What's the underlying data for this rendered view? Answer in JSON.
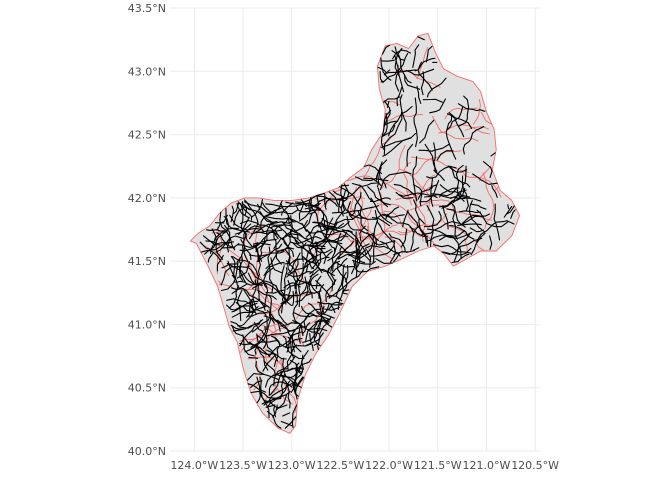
{
  "chart_data": {
    "type": "map",
    "title": "",
    "xlabel": "",
    "ylabel": "",
    "x_ticks": [
      -124.0,
      -123.5,
      -123.0,
      -122.5,
      -122.0,
      -121.5,
      -121.0,
      -120.5
    ],
    "x_tick_labels": [
      "124.0°W",
      "123.5°W",
      "123.0°W",
      "122.5°W",
      "122.0°W",
      "121.5°W",
      "121.0°W",
      "120.5°W"
    ],
    "y_ticks": [
      40.0,
      40.5,
      41.0,
      41.5,
      42.0,
      42.5,
      43.0,
      43.5
    ],
    "y_tick_labels": [
      "40.0°N",
      "40.5°N",
      "41.0°N",
      "41.5°N",
      "42.0°N",
      "42.5°N",
      "43.0°N",
      "43.5°N"
    ],
    "xlim": [
      -124.25,
      -120.45
    ],
    "ylim": [
      40.0,
      43.5
    ],
    "grid": true,
    "layers": [
      {
        "name": "watershed boundaries",
        "type": "polygon",
        "fill": "#e0e0e0",
        "stroke": "#f26b6b"
      },
      {
        "name": "stream network",
        "type": "line",
        "stroke": "#000000"
      }
    ],
    "outline": [
      [
        -124.04,
        41.66
      ],
      [
        -123.98,
        41.64
      ],
      [
        -123.94,
        41.58
      ],
      [
        -123.86,
        41.46
      ],
      [
        -123.76,
        41.3
      ],
      [
        -123.7,
        41.14
      ],
      [
        -123.64,
        40.98
      ],
      [
        -123.56,
        40.86
      ],
      [
        -123.5,
        40.66
      ],
      [
        -123.42,
        40.46
      ],
      [
        -123.3,
        40.3
      ],
      [
        -123.14,
        40.18
      ],
      [
        -123.02,
        40.14
      ],
      [
        -122.96,
        40.2
      ],
      [
        -122.94,
        40.4
      ],
      [
        -122.86,
        40.6
      ],
      [
        -122.76,
        40.76
      ],
      [
        -122.62,
        40.92
      ],
      [
        -122.5,
        41.1
      ],
      [
        -122.38,
        41.3
      ],
      [
        -122.22,
        41.42
      ],
      [
        -122.04,
        41.46
      ],
      [
        -121.86,
        41.52
      ],
      [
        -121.7,
        41.58
      ],
      [
        -121.54,
        41.62
      ],
      [
        -121.44,
        41.56
      ],
      [
        -121.34,
        41.46
      ],
      [
        -121.2,
        41.52
      ],
      [
        -121.06,
        41.58
      ],
      [
        -120.9,
        41.58
      ],
      [
        -120.74,
        41.7
      ],
      [
        -120.66,
        41.86
      ],
      [
        -120.74,
        41.98
      ],
      [
        -120.86,
        42.06
      ],
      [
        -120.94,
        42.22
      ],
      [
        -120.9,
        42.38
      ],
      [
        -120.92,
        42.54
      ],
      [
        -121.0,
        42.68
      ],
      [
        -121.06,
        42.84
      ],
      [
        -121.14,
        42.92
      ],
      [
        -121.3,
        42.96
      ],
      [
        -121.44,
        43.02
      ],
      [
        -121.52,
        43.14
      ],
      [
        -121.6,
        43.3
      ],
      [
        -121.7,
        43.28
      ],
      [
        -121.8,
        43.18
      ],
      [
        -121.92,
        43.22
      ],
      [
        -122.04,
        43.2
      ],
      [
        -122.12,
        43.04
      ],
      [
        -122.1,
        42.86
      ],
      [
        -122.04,
        42.7
      ],
      [
        -122.06,
        42.52
      ],
      [
        -122.18,
        42.38
      ],
      [
        -122.26,
        42.24
      ],
      [
        -122.4,
        42.16
      ],
      [
        -122.52,
        42.08
      ],
      [
        -122.66,
        42.04
      ],
      [
        -122.82,
        42.0
      ],
      [
        -123.0,
        41.98
      ],
      [
        -123.18,
        41.98
      ],
      [
        -123.34,
        42.0
      ],
      [
        -123.48,
        42.0
      ],
      [
        -123.62,
        41.96
      ],
      [
        -123.74,
        41.88
      ],
      [
        -123.84,
        41.78
      ],
      [
        -123.96,
        41.72
      ]
    ]
  }
}
